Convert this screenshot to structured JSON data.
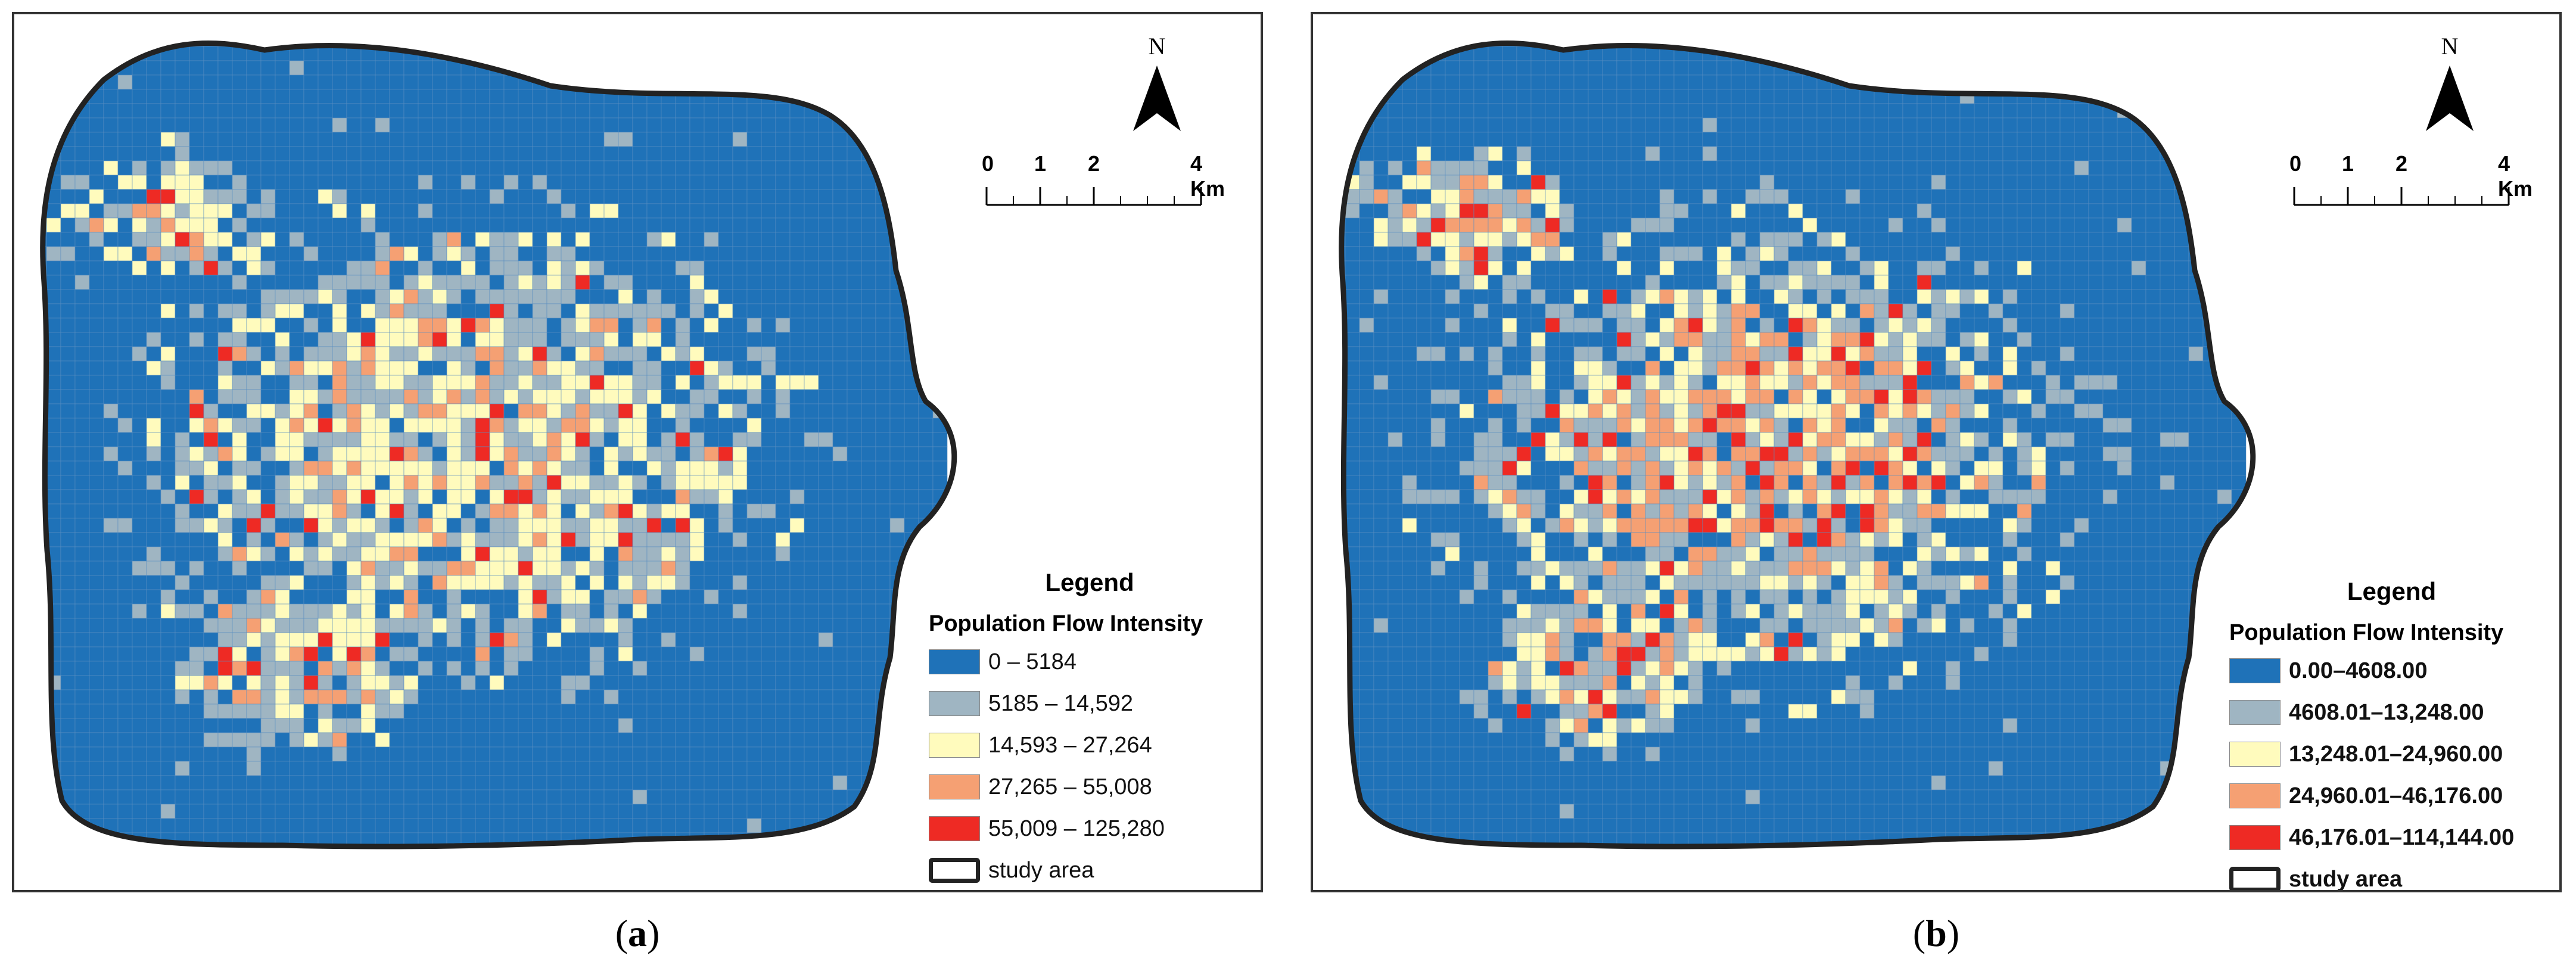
{
  "colors": {
    "class1": "#1f72b8",
    "class2": "#9fb5c2",
    "class3": "#fffbbd",
    "class4": "#f5a073",
    "class5": "#ee2a24",
    "boundary": "#222222"
  },
  "north_label": "N",
  "scale": {
    "labels": [
      "0",
      "1",
      "2",
      "4 Km"
    ]
  },
  "panels": [
    {
      "caption_letter": "a",
      "legend": {
        "title": "Legend",
        "subtitle": "Population Flow  Intensity",
        "items": [
          {
            "label": "0 – 5184"
          },
          {
            "label": "5185 – 14,592"
          },
          {
            "label": "14,593 – 27,264"
          },
          {
            "label": "27,265 – 55,008"
          },
          {
            "label": "55,009 – 125,280"
          },
          {
            "label": "study area"
          }
        ]
      }
    },
    {
      "caption_letter": "b",
      "legend": {
        "title": "Legend",
        "subtitle": "Population Flow  Intensity",
        "items": [
          {
            "label": "0.00–4608.00"
          },
          {
            "label": "4608.01–13,248.00"
          },
          {
            "label": "13,248.01–24,960.00"
          },
          {
            "label": "24,960.01–46,176.00"
          },
          {
            "label": "46,176.01–114,144.00"
          },
          {
            "label": "study area"
          }
        ]
      }
    }
  ]
}
